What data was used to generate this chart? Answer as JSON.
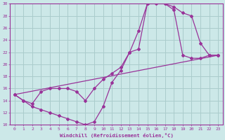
{
  "xlabel": "Windchill (Refroidissement éolien,°C)",
  "bg_color": "#cce8e8",
  "line_color": "#993399",
  "grid_color": "#aacccc",
  "spine_color": "#993399",
  "xlim": [
    -0.5,
    23.5
  ],
  "ylim": [
    10,
    30
  ],
  "xticks": [
    0,
    1,
    2,
    3,
    4,
    5,
    6,
    7,
    8,
    9,
    10,
    11,
    12,
    13,
    14,
    15,
    16,
    17,
    18,
    19,
    20,
    21,
    22,
    23
  ],
  "yticks": [
    10,
    12,
    14,
    16,
    18,
    20,
    22,
    24,
    26,
    28,
    30
  ],
  "tick_fontsize": 4.5,
  "xlabel_fontsize": 5.2,
  "curve1_x": [
    0,
    1,
    2,
    3,
    4,
    5,
    6,
    7,
    8,
    9,
    10,
    11,
    12,
    13,
    14,
    15,
    16,
    17,
    18,
    19,
    20,
    21,
    22,
    23
  ],
  "curve1_y": [
    15,
    14,
    13,
    12.5,
    12,
    11.5,
    11,
    10.5,
    10,
    10.5,
    13,
    17,
    19,
    22,
    25.5,
    30,
    30.5,
    30,
    29.5,
    28.5,
    28,
    23.5,
    21.5,
    21.5
  ],
  "curve2_x": [
    0,
    1,
    2,
    3,
    4,
    5,
    6,
    7,
    8,
    9,
    10,
    11,
    12,
    13,
    14,
    15,
    16,
    17,
    18,
    19,
    20,
    21,
    22,
    23
  ],
  "curve2_y": [
    15,
    14,
    13.5,
    15.5,
    16,
    16,
    16,
    15.5,
    14,
    16,
    17.5,
    18.5,
    19.5,
    22,
    22.5,
    30,
    30,
    30,
    29,
    21.5,
    21,
    21,
    21.5,
    21.5
  ],
  "curve3_x": [
    0,
    23
  ],
  "curve3_y": [
    15,
    21.5
  ],
  "marker": "D",
  "markersize": 2.0,
  "linewidth": 0.9
}
